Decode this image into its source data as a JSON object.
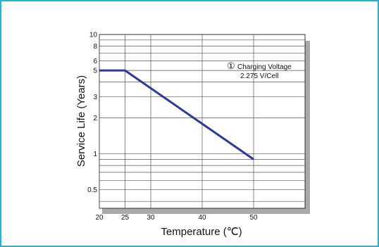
{
  "chart_data": {
    "type": "line",
    "xlabel": "Temperature (℃)",
    "ylabel": "Service Life (Years)",
    "x_ticks": [
      "20",
      "25",
      "30",
      "40",
      "50"
    ],
    "y_ticks": [
      "0.5",
      "1",
      "2",
      "3",
      "5",
      "6",
      "8",
      "10"
    ],
    "yscale": "log",
    "xlim": [
      20,
      60
    ],
    "ylim": [
      0.35,
      10
    ],
    "grid": true,
    "annotation": {
      "marker": "①",
      "lines": [
        "Charging Voltage",
        "2.275 V/Cell"
      ]
    },
    "series": [
      {
        "x": [
          20,
          25,
          50
        ],
        "y": [
          5,
          5,
          0.9
        ]
      }
    ],
    "colors": {
      "line": "#2b3a9b",
      "grid": "#555555",
      "shadow": "#a9a9a9",
      "frame": "#1fb6d0"
    }
  }
}
